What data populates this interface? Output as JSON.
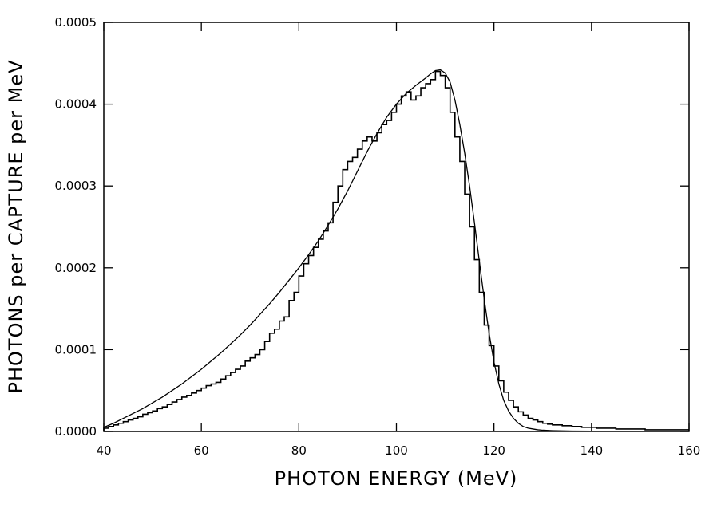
{
  "chart_data": {
    "type": "line",
    "title": "",
    "xlabel": "PHOTON ENERGY (MeV)",
    "ylabel": "PHOTONS per CAPTURE per MeV",
    "xlim": [
      40,
      160
    ],
    "ylim": [
      0,
      0.0005
    ],
    "x_ticks": [
      "40",
      "60",
      "80",
      "100",
      "120",
      "140",
      "160"
    ],
    "y_ticks": [
      "0.0000",
      "0.0001",
      "0.0002",
      "0.0003",
      "0.0004",
      "0.0005"
    ],
    "grid": false,
    "legend": "none",
    "colors": {
      "line": "#000000",
      "background": "#ffffff"
    },
    "series": [
      {
        "style": "step",
        "bin_width": 1,
        "x": [
          40,
          41,
          42,
          43,
          44,
          45,
          46,
          47,
          48,
          49,
          50,
          51,
          52,
          53,
          54,
          55,
          56,
          57,
          58,
          59,
          60,
          61,
          62,
          63,
          64,
          65,
          66,
          67,
          68,
          69,
          70,
          71,
          72,
          73,
          74,
          75,
          76,
          77,
          78,
          79,
          80,
          81,
          82,
          83,
          84,
          85,
          86,
          87,
          88,
          89,
          90,
          91,
          92,
          93,
          94,
          95,
          96,
          97,
          98,
          99,
          100,
          101,
          102,
          103,
          104,
          105,
          106,
          107,
          108,
          109,
          110,
          111,
          112,
          113,
          114,
          115,
          116,
          117,
          118,
          119,
          120,
          121,
          122,
          123,
          124,
          125,
          126,
          127,
          128,
          129,
          130,
          131,
          132,
          133,
          134,
          135,
          136,
          137,
          138,
          139,
          140,
          141,
          142,
          143,
          144,
          145,
          146,
          147,
          148,
          149,
          150,
          151,
          152,
          153,
          154,
          155,
          156,
          157,
          158,
          159
        ],
        "y": [
          4e-06,
          6e-06,
          8e-06,
          1e-05,
          1.2e-05,
          1.4e-05,
          1.6e-05,
          1.8e-05,
          2.1e-05,
          2.3e-05,
          2.5e-05,
          2.8e-05,
          3e-05,
          3.3e-05,
          3.6e-05,
          3.9e-05,
          4.2e-05,
          4.4e-05,
          4.7e-05,
          5e-05,
          5.3e-05,
          5.6e-05,
          5.8e-05,
          6e-05,
          6.4e-05,
          6.8e-05,
          7.2e-05,
          7.6e-05,
          8e-05,
          8.6e-05,
          9e-05,
          9.4e-05,
          0.0001,
          0.00011,
          0.00012,
          0.000125,
          0.000135,
          0.00014,
          0.00016,
          0.00017,
          0.00019,
          0.000205,
          0.000215,
          0.000225,
          0.000235,
          0.000245,
          0.000255,
          0.00028,
          0.0003,
          0.00032,
          0.00033,
          0.000335,
          0.000345,
          0.000355,
          0.00036,
          0.000355,
          0.000365,
          0.000375,
          0.00038,
          0.00039,
          0.0004,
          0.00041,
          0.000415,
          0.000405,
          0.00041,
          0.00042,
          0.000425,
          0.00043,
          0.00044,
          0.000435,
          0.00042,
          0.00039,
          0.00036,
          0.00033,
          0.00029,
          0.00025,
          0.00021,
          0.00017,
          0.00013,
          0.000105,
          8e-05,
          6.2e-05,
          4.8e-05,
          3.8e-05,
          3e-05,
          2.4e-05,
          2e-05,
          1.6e-05,
          1.4e-05,
          1.2e-05,
          1e-05,
          9e-06,
          8e-06,
          8e-06,
          7e-06,
          7e-06,
          6e-06,
          6e-06,
          5e-06,
          5e-06,
          5e-06,
          4e-06,
          4e-06,
          4e-06,
          4e-06,
          3e-06,
          3e-06,
          3e-06,
          3e-06,
          3e-06,
          3e-06,
          2e-06,
          2e-06,
          2e-06,
          2e-06,
          2e-06,
          2e-06,
          2e-06,
          2e-06,
          2e-06
        ]
      },
      {
        "style": "smooth",
        "x": [
          40,
          42,
          44,
          46,
          48,
          50,
          52,
          54,
          56,
          58,
          60,
          62,
          64,
          66,
          68,
          70,
          72,
          74,
          76,
          78,
          80,
          82,
          84,
          86,
          88,
          90,
          92,
          94,
          96,
          98,
          100,
          102,
          104,
          106,
          107,
          108,
          109,
          110,
          111,
          112,
          113,
          114,
          115,
          116,
          117,
          118,
          119,
          120,
          121,
          122,
          123,
          124,
          125,
          126,
          127,
          128,
          129,
          130,
          132,
          134,
          136,
          140,
          145,
          150,
          155,
          160
        ],
        "y": [
          5e-06,
          1e-05,
          1.6e-05,
          2.2e-05,
          2.8e-05,
          3.5e-05,
          4.2e-05,
          5e-05,
          5.8e-05,
          6.7e-05,
          7.6e-05,
          8.6e-05,
          9.6e-05,
          0.000107,
          0.000118,
          0.00013,
          0.000143,
          0.000156,
          0.00017,
          0.000185,
          0.0002,
          0.000216,
          0.000233,
          0.000252,
          0.000272,
          0.000294,
          0.000318,
          0.000342,
          0.000364,
          0.000384,
          0.0004,
          0.000413,
          0.000423,
          0.000432,
          0.000437,
          0.000441,
          0.000442,
          0.000438,
          0.000427,
          0.000405,
          0.000375,
          0.00034,
          0.0003,
          0.000255,
          0.000208,
          0.000162,
          0.00012,
          8.5e-05,
          5.8e-05,
          3.8e-05,
          2.5e-05,
          1.6e-05,
          1e-05,
          6e-06,
          4e-06,
          3e-06,
          2e-06,
          1.5e-06,
          1e-06,
          7e-07,
          5e-07,
          3e-07,
          2e-07,
          1e-07,
          1e-07,
          1e-07
        ]
      }
    ]
  }
}
